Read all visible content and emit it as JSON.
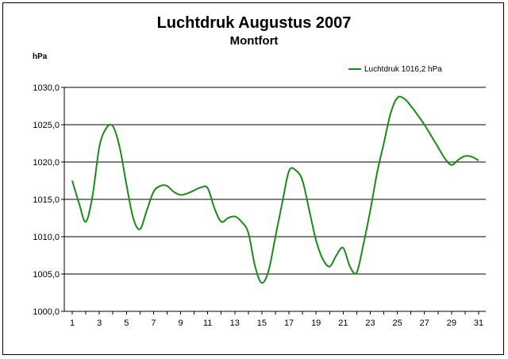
{
  "chart_data": {
    "type": "line",
    "title": "Luchtdruk Augustus 2007",
    "subtitle": "Montfort",
    "ylabel": "hPa",
    "xlabel": "",
    "ylim": [
      1000,
      1030
    ],
    "xlim": [
      1,
      31
    ],
    "y_ticks": [
      "1000,0",
      "1005,0",
      "1010,0",
      "1015,0",
      "1020,0",
      "1025,0",
      "1030,0"
    ],
    "y_tick_values": [
      1000,
      1005,
      1010,
      1015,
      1020,
      1025,
      1030
    ],
    "x_ticks": [
      "1",
      "3",
      "5",
      "7",
      "9",
      "11",
      "13",
      "15",
      "17",
      "19",
      "21",
      "23",
      "25",
      "27",
      "29",
      "31"
    ],
    "x_tick_values": [
      1,
      3,
      5,
      7,
      9,
      11,
      13,
      15,
      17,
      19,
      21,
      23,
      25,
      27,
      29,
      31
    ],
    "grid": "horizontal",
    "legend_position": "top-right",
    "series": [
      {
        "name": "Luchtdruk 1016,2 hPa",
        "color": "#1a8a1a",
        "x": [
          1,
          1.5,
          2,
          2.5,
          3,
          3.5,
          4,
          4.5,
          5,
          5.5,
          6,
          6.5,
          7,
          7.5,
          8,
          8.5,
          9,
          9.5,
          10,
          10.5,
          11,
          11.5,
          12,
          12.5,
          13,
          13.5,
          14,
          14.5,
          15,
          15.5,
          16,
          16.5,
          17,
          17.5,
          18,
          18.5,
          19,
          19.5,
          20,
          20.5,
          21,
          21.5,
          22,
          22.5,
          23,
          23.5,
          24,
          24.5,
          25,
          25.5,
          26,
          26.5,
          27,
          27.5,
          28,
          28.5,
          29,
          29.5,
          30,
          30.5,
          31
        ],
        "values": [
          1017.5,
          1014.5,
          1012.0,
          1015.5,
          1022.0,
          1024.5,
          1024.8,
          1022.0,
          1017.0,
          1012.5,
          1011.0,
          1013.5,
          1016.0,
          1016.8,
          1016.8,
          1016.0,
          1015.6,
          1015.8,
          1016.2,
          1016.6,
          1016.5,
          1013.8,
          1012.0,
          1012.5,
          1012.7,
          1012.0,
          1010.5,
          1006.0,
          1003.8,
          1005.5,
          1010.0,
          1014.5,
          1018.8,
          1018.9,
          1017.5,
          1013.5,
          1009.5,
          1007.0,
          1006.0,
          1007.5,
          1008.5,
          1006.0,
          1005.2,
          1009.0,
          1013.5,
          1018.5,
          1022.5,
          1026.5,
          1028.6,
          1028.5,
          1027.5,
          1026.3,
          1025.0,
          1023.5,
          1022.0,
          1020.5,
          1019.6,
          1020.3,
          1020.8,
          1020.7,
          1020.2
        ]
      }
    ]
  }
}
